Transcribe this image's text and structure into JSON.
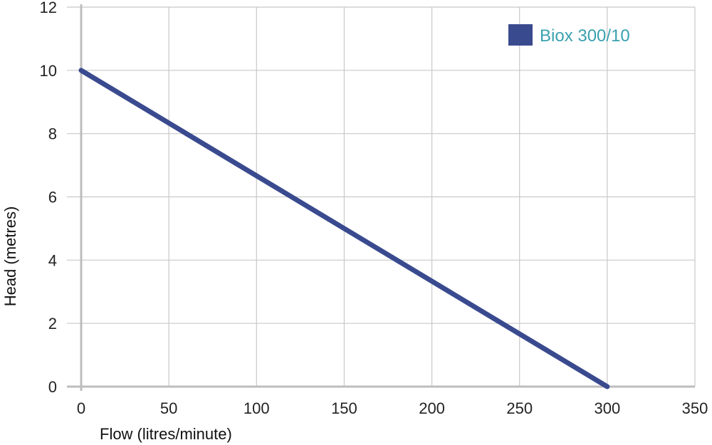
{
  "chart_data": {
    "type": "line",
    "xlabel": "Flow (litres/minute)",
    "ylabel": "Head (metres)",
    "xlim": [
      0,
      350
    ],
    "ylim": [
      0,
      12
    ],
    "x_ticks": [
      0,
      50,
      100,
      150,
      200,
      250,
      300,
      350
    ],
    "y_ticks": [
      0,
      2,
      4,
      6,
      8,
      10,
      12
    ],
    "grid": true,
    "legend_position": "top-right",
    "series": [
      {
        "name": "Biox 300/10",
        "color": "#3a4a8f",
        "x": [
          0,
          300
        ],
        "y": [
          10,
          0
        ]
      }
    ]
  },
  "colors": {
    "legend_text": "#3aa1b0",
    "line": "#3a4a8f"
  }
}
